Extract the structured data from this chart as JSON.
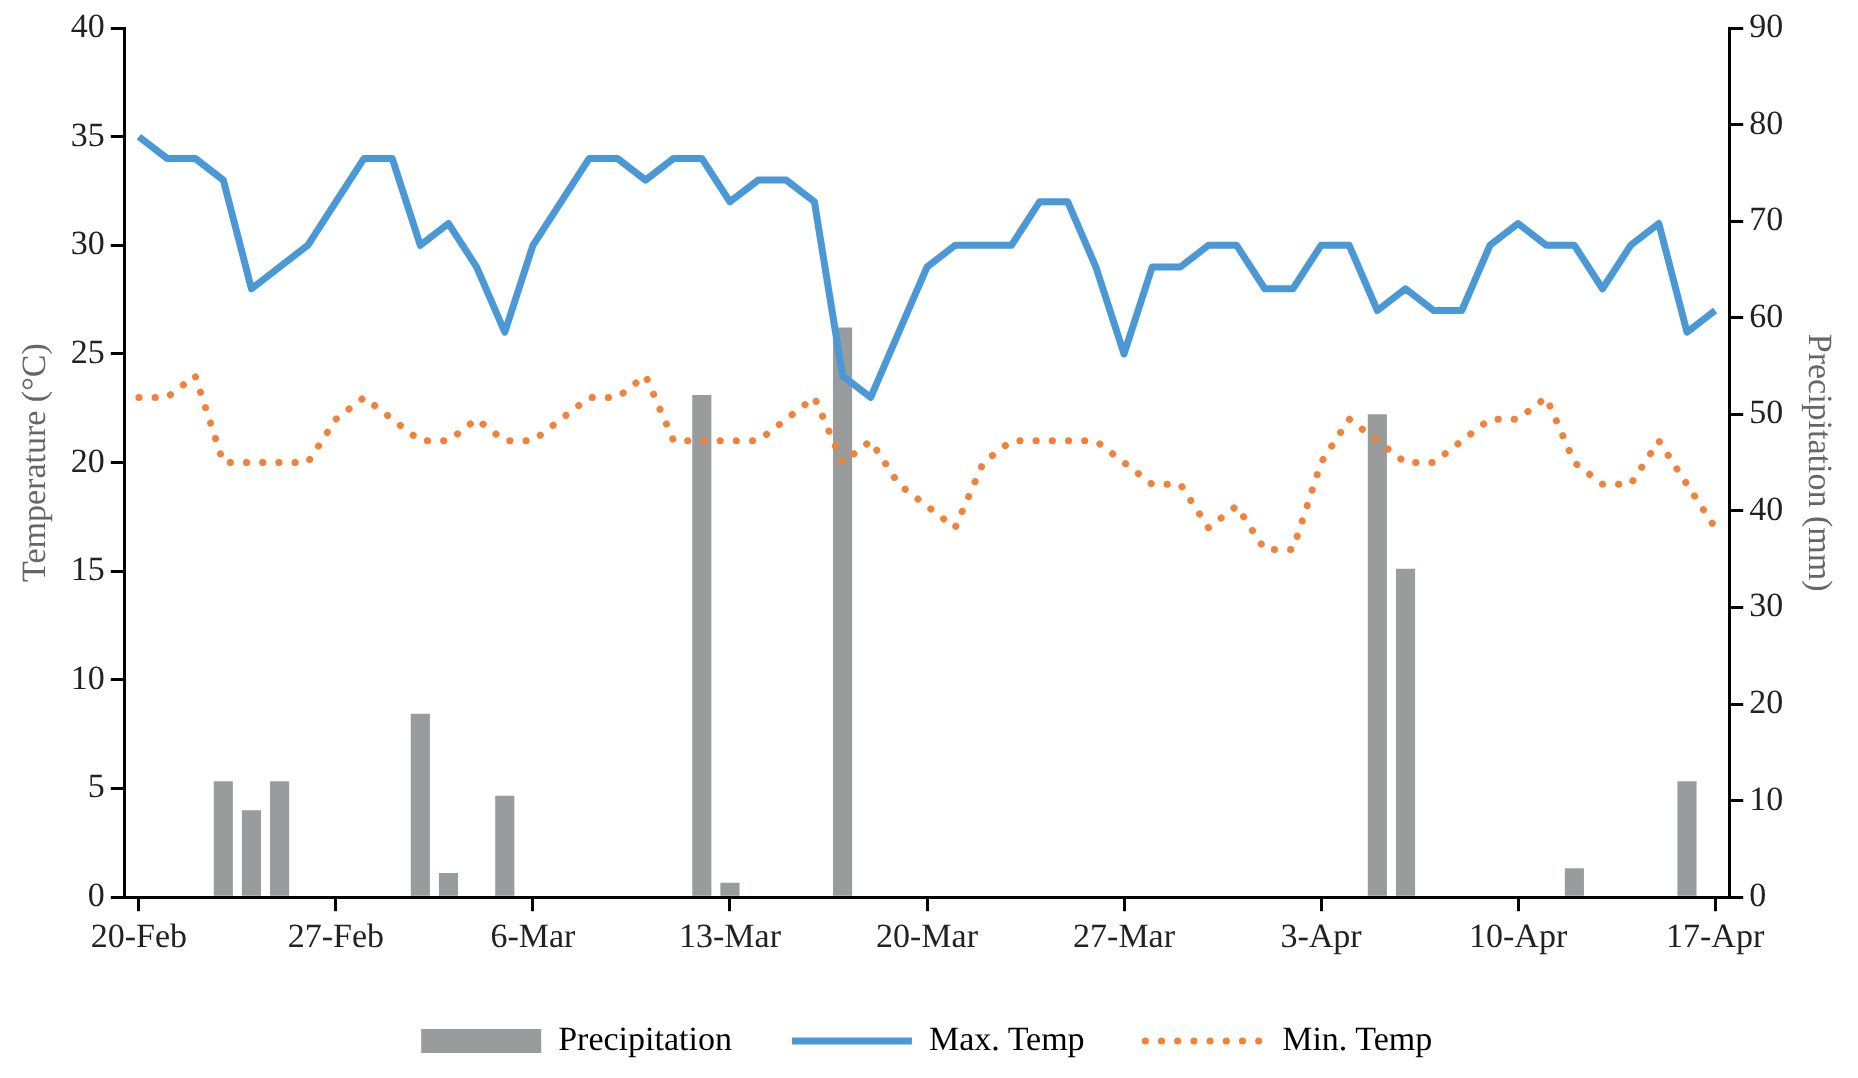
{
  "chart_data": {
    "type": "line",
    "ylabel": "Temperature (°C)",
    "y2label": "Precipitation (mm)",
    "categories": [
      "20-Feb",
      null,
      null,
      null,
      null,
      null,
      null,
      "27-Feb",
      null,
      null,
      null,
      null,
      null,
      null,
      "6-Mar",
      null,
      null,
      null,
      null,
      null,
      null,
      "13-Mar",
      null,
      null,
      null,
      null,
      null,
      null,
      "20-Mar",
      null,
      null,
      null,
      null,
      null,
      null,
      "27-Mar",
      null,
      null,
      null,
      null,
      null,
      null,
      "3-Apr",
      null,
      null,
      null,
      null,
      null,
      null,
      "10-Apr",
      null,
      null,
      null,
      null,
      null,
      null,
      "17-Apr"
    ],
    "ylim": [
      0,
      40
    ],
    "yticks": [
      0,
      5,
      10,
      15,
      20,
      25,
      30,
      35,
      40
    ],
    "y2lim": [
      0,
      90
    ],
    "y2ticks": [
      0,
      10,
      20,
      30,
      40,
      50,
      60,
      70,
      80,
      90
    ],
    "legend": "bottom",
    "marker": "none",
    "series": [
      {
        "name": "Precipitation",
        "type": "bar",
        "axis": "y2",
        "color": "#999c9c",
        "values": [
          0,
          0,
          0,
          12,
          9,
          12,
          0,
          0,
          0,
          0,
          19,
          2.5,
          0,
          10.5,
          0,
          0,
          0,
          0,
          0,
          0,
          52,
          1.5,
          0,
          0,
          0,
          59,
          0,
          0,
          0,
          0,
          0,
          0,
          0,
          0,
          0,
          0,
          0,
          0,
          0,
          0,
          0,
          0,
          0,
          0,
          50,
          34,
          0,
          0,
          0,
          0,
          0,
          3,
          0,
          0,
          0,
          12,
          0
        ]
      },
      {
        "name": "Max. Temp",
        "line_style": "solid",
        "color": "#4a98d6",
        "values": [
          35,
          34,
          34,
          33,
          28,
          29,
          30,
          32,
          34,
          34,
          30,
          31,
          29,
          26,
          30,
          32,
          34,
          34,
          33,
          34,
          34,
          32,
          33,
          33,
          32,
          24,
          23,
          26,
          29,
          30,
          30,
          30,
          32,
          32,
          29,
          25,
          29,
          29,
          30,
          30,
          28,
          28,
          30,
          30,
          27,
          28,
          27,
          27,
          30,
          31,
          30,
          30,
          28,
          30,
          31,
          26,
          27
        ]
      },
      {
        "name": "Min. Temp",
        "line_style": "dotted",
        "color": "#f0833a",
        "values": [
          23,
          23,
          24,
          20,
          20,
          20,
          20,
          22,
          23,
          22,
          21,
          21,
          22,
          21,
          21,
          22,
          23,
          23,
          24,
          21,
          21,
          21,
          21,
          22,
          23,
          20,
          21,
          19,
          18,
          17,
          20,
          21,
          21,
          21,
          21,
          20,
          19,
          19,
          17,
          18,
          16,
          16,
          20,
          22,
          21,
          20,
          20,
          21,
          22,
          22,
          23,
          20,
          19,
          19,
          21,
          19,
          17
        ]
      }
    ]
  }
}
